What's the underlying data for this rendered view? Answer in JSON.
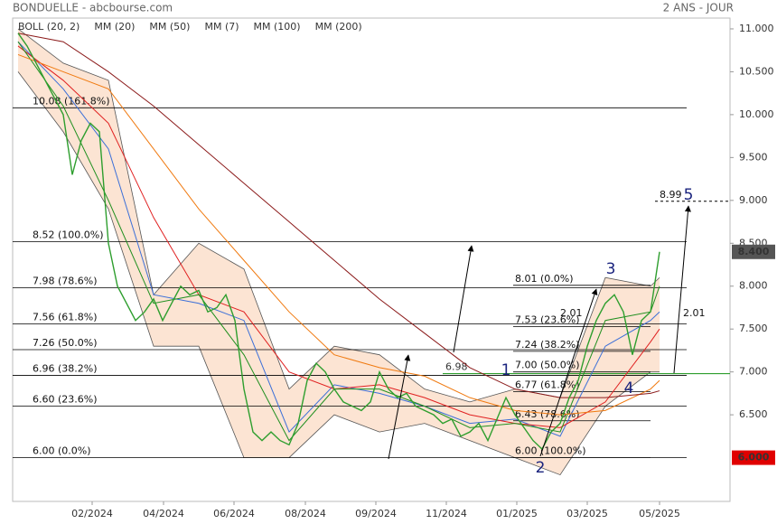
{
  "header": {
    "title": "BONDUELLE - abcbourse.com",
    "period": "2 ANS - JOUR"
  },
  "chart_data": {
    "type": "line",
    "ylim": [
      5.49,
      11.126
    ],
    "xlim": [
      -0.6,
      78.8
    ],
    "yticks": [
      {
        "value": 11,
        "label": "11.000"
      },
      {
        "value": 10.5,
        "label": "10.500"
      },
      {
        "value": 10,
        "label": "10.000"
      },
      {
        "value": 9.5,
        "label": "9.500"
      },
      {
        "value": 9,
        "label": "9.000"
      },
      {
        "value": 8.5,
        "label": "8.500"
      },
      {
        "value": 8,
        "label": "8.000"
      },
      {
        "value": 7.5,
        "label": "7.500"
      },
      {
        "value": 7,
        "label": "7.000"
      },
      {
        "value": 6.5,
        "label": "6.500"
      }
    ],
    "xticks": [
      {
        "value": 8.2,
        "label": "02/2024"
      },
      {
        "value": 16.1,
        "label": "04/2024"
      },
      {
        "value": 23.9,
        "label": "06/2024"
      },
      {
        "value": 31.8,
        "label": "08/2024"
      },
      {
        "value": 39.6,
        "label": "09/2024"
      },
      {
        "value": 47.4,
        "label": "11/2024"
      },
      {
        "value": 55.2,
        "label": "01/2025"
      },
      {
        "value": 63,
        "label": "03/2025"
      },
      {
        "value": 71,
        "label": "05/2025"
      }
    ],
    "price": {
      "color": "#2e9e2e",
      "x": [
        0,
        1,
        2,
        3,
        4,
        5,
        6,
        7,
        8,
        9,
        10,
        11,
        12,
        13,
        14,
        15,
        16,
        17,
        18,
        19,
        20,
        21,
        22,
        23,
        24,
        25,
        26,
        27,
        28,
        29,
        30,
        31,
        32,
        33,
        34,
        35,
        36,
        37,
        38,
        39,
        40,
        41,
        42,
        43,
        44,
        45,
        46,
        47,
        48,
        49,
        50,
        51,
        52,
        53,
        54,
        55,
        56,
        57,
        58,
        59,
        60,
        61,
        62,
        63,
        64,
        65,
        66,
        67,
        68,
        69,
        70,
        71
      ],
      "values": [
        10.95,
        10.8,
        10.6,
        10.4,
        10.2,
        10.0,
        9.3,
        9.7,
        9.9,
        9.8,
        8.5,
        8.0,
        7.8,
        7.6,
        7.7,
        7.85,
        7.6,
        7.8,
        8.0,
        7.9,
        7.95,
        7.7,
        7.75,
        7.9,
        7.6,
        6.8,
        6.3,
        6.2,
        6.3,
        6.2,
        6.15,
        6.4,
        6.9,
        7.1,
        7.0,
        6.8,
        6.65,
        6.6,
        6.55,
        6.65,
        7.0,
        6.8,
        6.7,
        6.75,
        6.6,
        6.55,
        6.5,
        6.4,
        6.45,
        6.25,
        6.3,
        6.4,
        6.2,
        6.45,
        6.7,
        6.5,
        6.35,
        6.2,
        6.1,
        6.3,
        6.4,
        6.7,
        6.9,
        7.3,
        7.6,
        7.8,
        7.9,
        7.7,
        7.2,
        7.6,
        7.7,
        8.4
      ]
    },
    "ma_x": [
      0,
      5,
      10,
      15,
      20,
      25,
      30,
      35,
      40,
      45,
      50,
      55,
      60,
      65,
      70,
      71
    ],
    "bollinger": {
      "name": "BOLL (20, 2)",
      "color": "#555555",
      "fill": "#fbd9c0",
      "upper": [
        11.0,
        10.6,
        10.4,
        7.9,
        8.5,
        8.2,
        6.8,
        7.3,
        7.2,
        6.8,
        6.65,
        6.8,
        6.7,
        8.1,
        8.0,
        8.1
      ],
      "lower": [
        10.5,
        9.8,
        8.9,
        7.3,
        7.3,
        6.0,
        6.0,
        6.5,
        6.3,
        6.4,
        6.2,
        6.0,
        5.8,
        6.6,
        7.0,
        7.0
      ]
    },
    "series": [
      {
        "name": "MM (20)",
        "color": "#3b6fd8",
        "values": [
          10.85,
          10.3,
          9.6,
          7.9,
          7.8,
          7.6,
          6.3,
          6.85,
          6.75,
          6.6,
          6.4,
          6.45,
          6.25,
          7.3,
          7.6,
          7.7
        ]
      },
      {
        "name": "MM (50)",
        "color": "#e02020",
        "values": [
          10.8,
          10.4,
          9.9,
          8.8,
          7.9,
          7.7,
          7.0,
          6.8,
          6.85,
          6.7,
          6.5,
          6.4,
          6.35,
          6.65,
          7.35,
          7.5
        ]
      },
      {
        "name": "MM (7)",
        "color": "#1f8f1f",
        "values": [
          10.85,
          10.1,
          9.0,
          7.8,
          7.9,
          7.2,
          6.2,
          6.8,
          6.8,
          6.6,
          6.35,
          6.4,
          6.3,
          7.6,
          7.7,
          8.0
        ]
      },
      {
        "name": "MM (100)",
        "color": "#f07a10",
        "values": [
          10.7,
          10.5,
          10.3,
          9.6,
          8.9,
          8.3,
          7.7,
          7.2,
          7.05,
          6.95,
          6.7,
          6.55,
          6.5,
          6.55,
          6.8,
          6.9
        ]
      },
      {
        "name": "MM (200)",
        "color": "#8b1a1a",
        "values": [
          10.95,
          10.85,
          10.5,
          10.1,
          9.65,
          9.2,
          8.75,
          8.3,
          7.85,
          7.45,
          7.05,
          6.8,
          6.7,
          6.7,
          6.75,
          6.78
        ]
      }
    ],
    "fib_left": [
      {
        "value": 10.08,
        "label": "10.08  (161.8%)"
      },
      {
        "value": 8.52,
        "label": "8.52  (100.0%)"
      },
      {
        "value": 7.98,
        "label": "7.98  (78.6%)"
      },
      {
        "value": 7.56,
        "label": "7.56  (61.8%)"
      },
      {
        "value": 7.26,
        "label": "7.26  (50.0%)"
      },
      {
        "value": 6.96,
        "label": "6.96  (38.2%)"
      },
      {
        "value": 6.6,
        "label": "6.60  (23.6%)"
      },
      {
        "value": 6.0,
        "label": "6.00  (0.0%)"
      }
    ],
    "fib_right": [
      {
        "value": 8.01,
        "label": "8.01  (0.0%)"
      },
      {
        "value": 7.53,
        "label": "7.53  (23.6%)"
      },
      {
        "value": 7.24,
        "label": "7.24  (38.2%)"
      },
      {
        "value": 7.0,
        "label": "7.00  (50.0%)"
      },
      {
        "value": 6.77,
        "label": "6.77  (61.8%)"
      },
      {
        "value": 6.43,
        "label": "6.43  (78.6%)"
      },
      {
        "value": 6.0,
        "label": "6.00  (100.0%)"
      }
    ],
    "support": {
      "value": 6.98,
      "label": "6.98",
      "color": "#2e9e2e"
    },
    "target": {
      "value": 8.99,
      "label": "8.99"
    },
    "waves": [
      "1",
      "2",
      "3",
      "4",
      "5"
    ],
    "amplitude_labels": [
      "2.01",
      "2.01"
    ],
    "last_price": {
      "value": 8.4,
      "label": "8.400",
      "color": "#555555"
    },
    "low_price": {
      "value": 6.0,
      "label": "6.000",
      "color": "#e00000"
    }
  }
}
